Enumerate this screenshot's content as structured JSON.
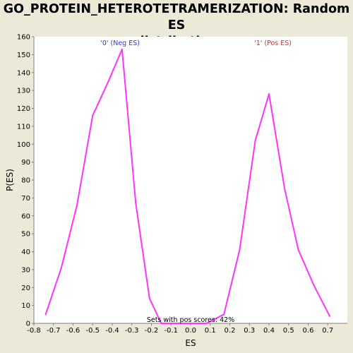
{
  "chart_data": {
    "type": "line",
    "title": "GO_PROTEIN_HETEROTETRAMERIZATION: Random ES distribution",
    "xlabel": "ES",
    "ylabel": "P(ES)",
    "xlim": [
      -0.8,
      0.8
    ],
    "ylim": [
      0,
      160
    ],
    "xticks": [
      "-0.8",
      "-0.7",
      "-0.6",
      "-0.5",
      "-0.4",
      "-0.3",
      "-0.2",
      "-0.1",
      "0.0",
      "0.1",
      "0.2",
      "0.3",
      "0.4",
      "0.5",
      "0.6",
      "0.7"
    ],
    "yticks": [
      "0",
      "10",
      "20",
      "30",
      "40",
      "50",
      "60",
      "70",
      "80",
      "90",
      "100",
      "110",
      "120",
      "130",
      "140",
      "150",
      "160"
    ],
    "grid": false,
    "series": [
      {
        "color": "#FF33FF",
        "x": [
          -0.74,
          -0.66,
          -0.58,
          -0.5,
          -0.42,
          -0.35,
          -0.28,
          -0.21,
          -0.15,
          -0.08,
          0.0,
          0.08,
          0.17,
          0.25,
          0.33,
          0.4,
          0.48,
          0.55,
          0.63,
          0.71
        ],
        "y": [
          5,
          31,
          66,
          116,
          135,
          153,
          67,
          14,
          0,
          0,
          0,
          0,
          5,
          41,
          102,
          128,
          75,
          41,
          21,
          4
        ]
      }
    ],
    "annotations": [
      {
        "text": "'0' (Neg ES)",
        "color": "#3333CC"
      },
      {
        "text": "'1' (Pos ES)",
        "color": "#CC3333"
      },
      {
        "text": "Sets with pos scores: 42%",
        "color": "#000000"
      }
    ]
  }
}
